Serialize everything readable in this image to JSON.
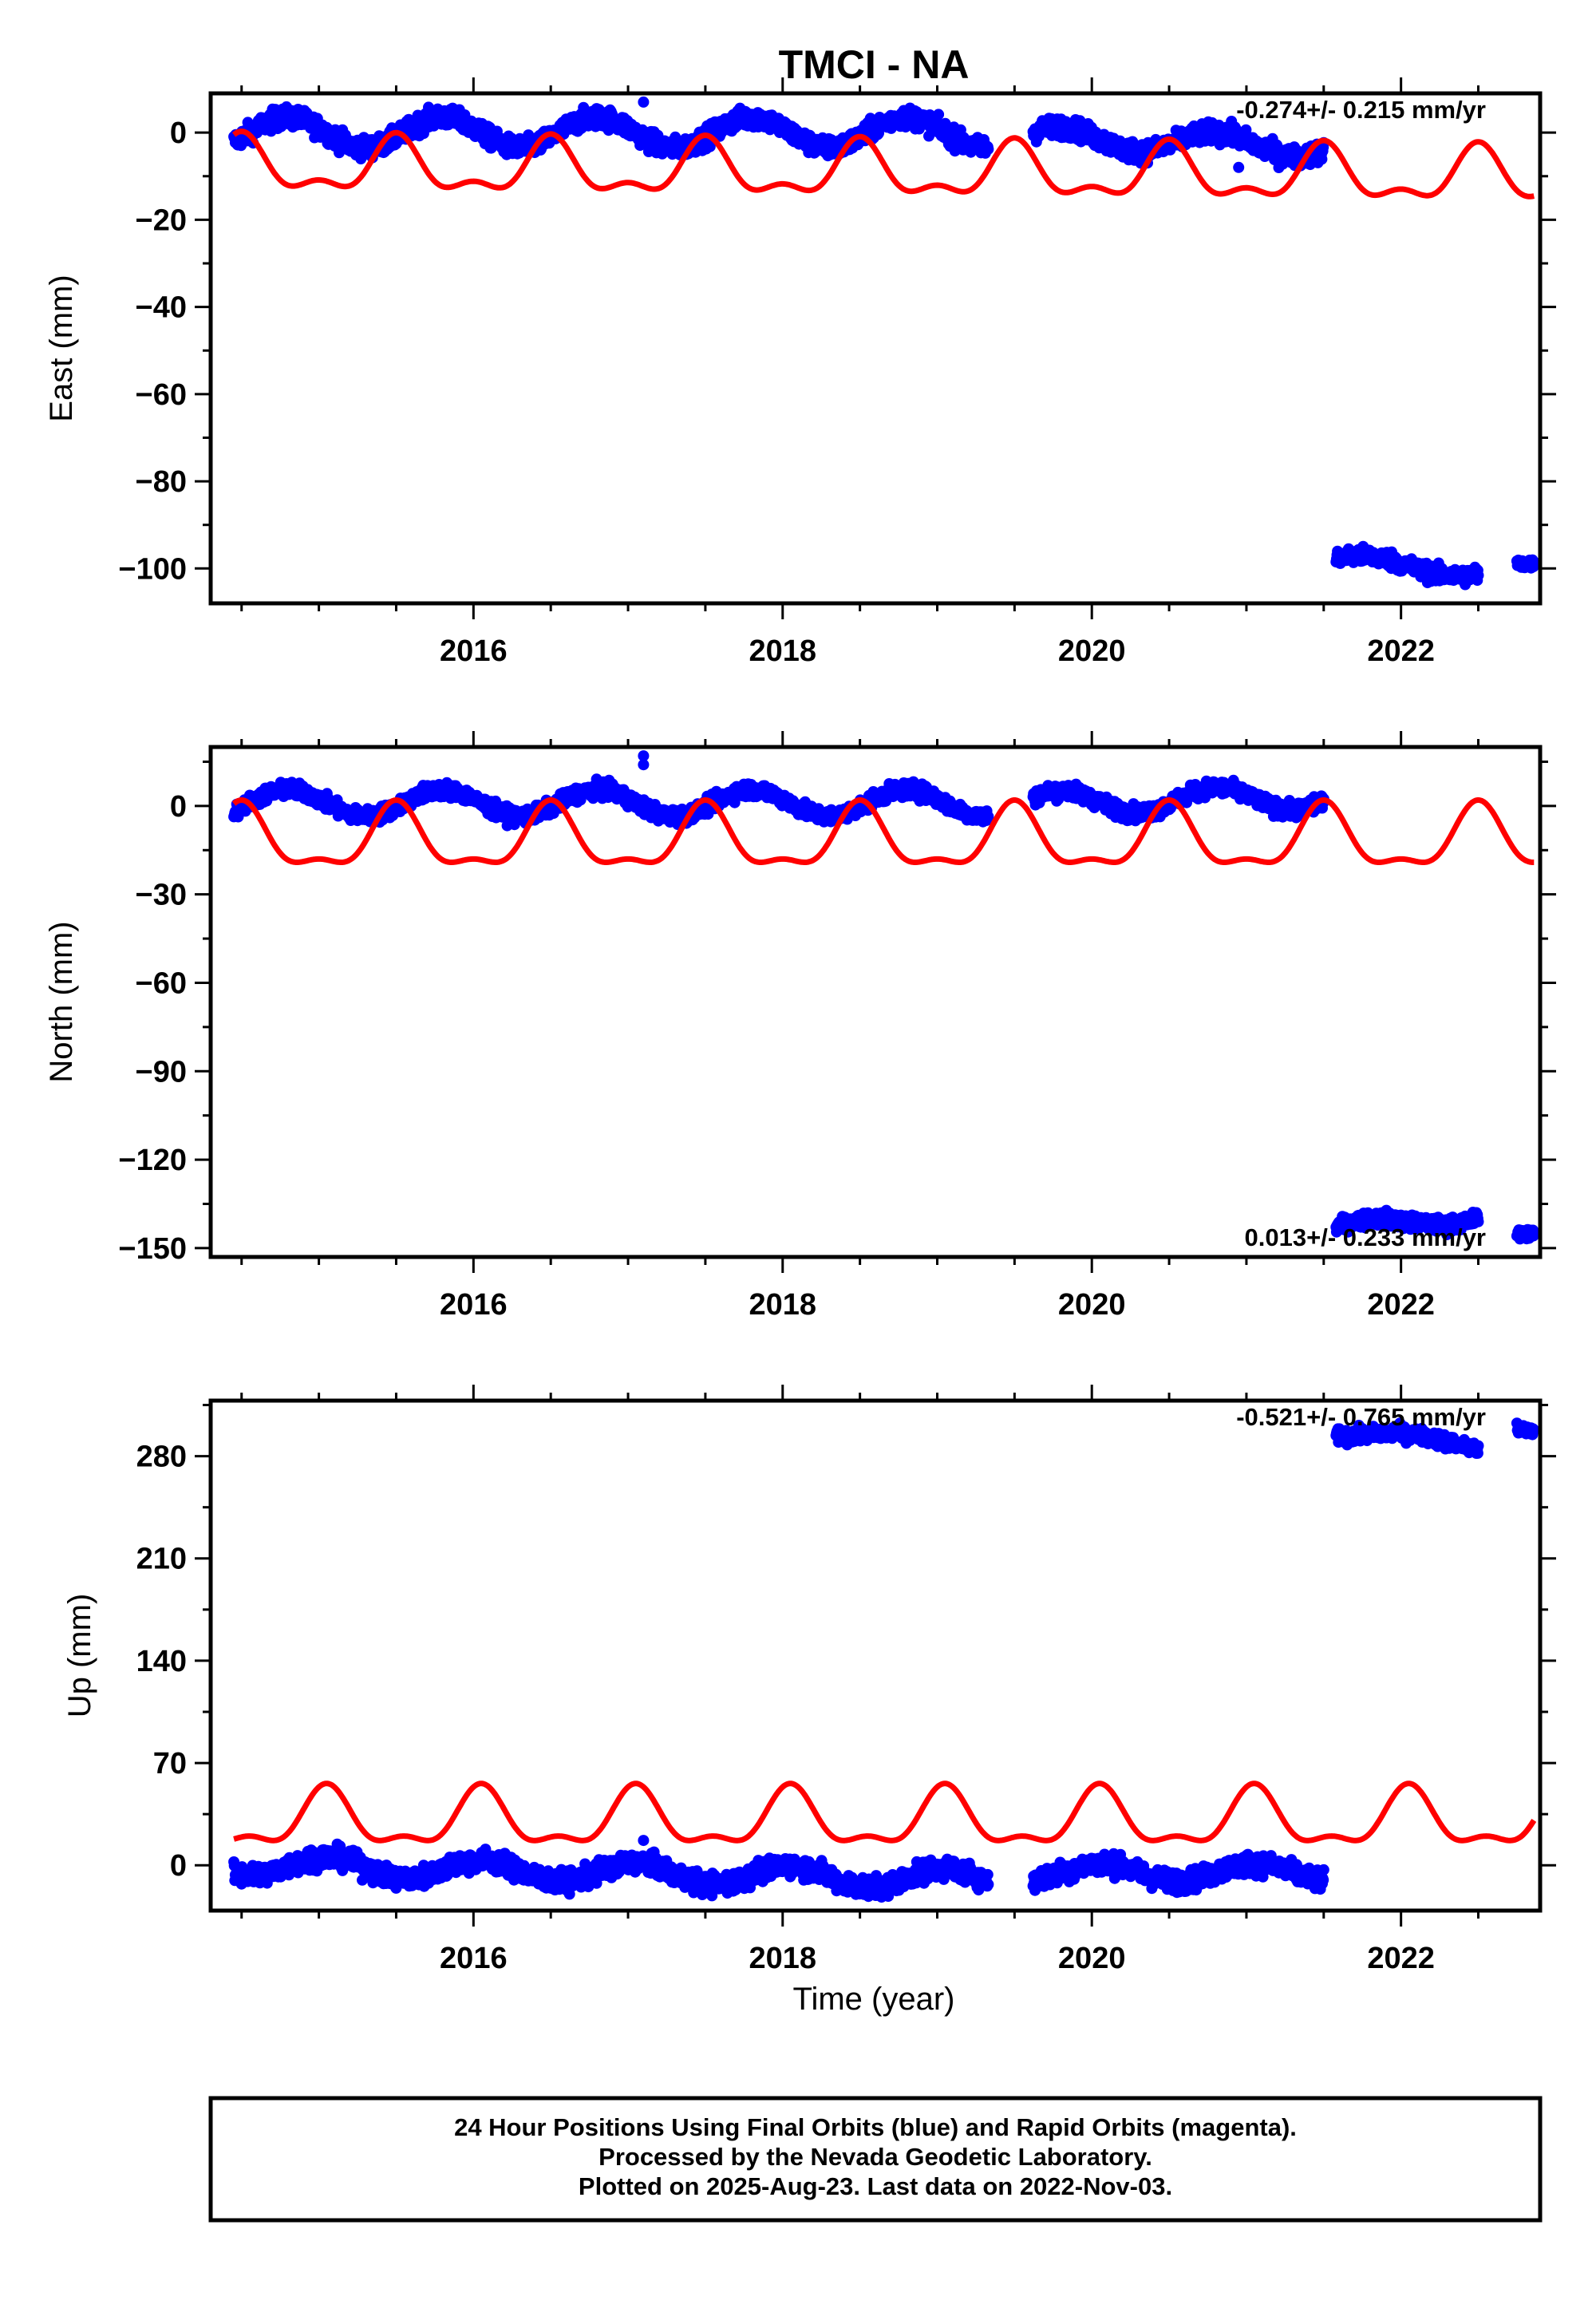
{
  "title": "TMCI - NA",
  "colors": {
    "data": "#0000ff",
    "model": "#ff0000",
    "frame": "#000000"
  },
  "chart_data": [
    {
      "type": "scatter",
      "ylabel": "East (mm)",
      "xlim": [
        2014.3,
        2022.9
      ],
      "ylim": [
        -108,
        9
      ],
      "xticks": [
        2016,
        2018,
        2020,
        2022
      ],
      "yticks": [
        0,
        -20,
        -40,
        -60,
        -80,
        -100
      ],
      "rate_label": "-0.274+/- 0.215 mm/yr",
      "rate_position": "top-right",
      "data_segments": [
        {
          "x0": 2014.45,
          "x1": 2019.33,
          "base": 0,
          "trend": 0,
          "amp": 3.5,
          "phase": 0.55,
          "noise": 1.6
        },
        {
          "x0": 2019.62,
          "x1": 2021.5,
          "base": -1,
          "trend": -1.2,
          "amp": 2.5,
          "phase": 0.55,
          "noise": 1.6
        },
        {
          "x0": 2021.58,
          "x1": 2022.5,
          "base": -98,
          "trend": -3,
          "amp": 1.5,
          "phase": 0.55,
          "noise": 1.4
        },
        {
          "x0": 2022.75,
          "x1": 2022.86,
          "base": -99,
          "trend": 0,
          "amp": 0,
          "phase": 0,
          "noise": 0.8
        }
      ],
      "outliers": [
        [
          2017.1,
          7
        ],
        [
          2020.95,
          -8
        ]
      ],
      "model": {
        "x0": 2014.45,
        "x1": 2022.86,
        "offset": -8,
        "trend": -0.3,
        "a1": 5.5,
        "ph1": 0.5,
        "a2": 2.8,
        "ph2": 0.5
      }
    },
    {
      "type": "scatter",
      "ylabel": "North (mm)",
      "xlim": [
        2014.3,
        2022.9
      ],
      "ylim": [
        -153,
        20
      ],
      "xticks": [
        2016,
        2018,
        2020,
        2022
      ],
      "yticks": [
        0,
        -30,
        -60,
        -90,
        -120,
        -150
      ],
      "rate_label": "0.013+/- 0.233 mm/yr",
      "rate_position": "bottom-right",
      "data_segments": [
        {
          "x0": 2014.45,
          "x1": 2019.33,
          "base": 1,
          "trend": 0,
          "amp": 4.5,
          "phase": 0.55,
          "noise": 1.8
        },
        {
          "x0": 2019.62,
          "x1": 2021.5,
          "base": 1,
          "trend": 1,
          "amp": 4,
          "phase": 0.55,
          "noise": 1.8
        },
        {
          "x0": 2021.58,
          "x1": 2022.5,
          "base": -143,
          "trend": 4,
          "amp": 2,
          "phase": 0.55,
          "noise": 1.8
        },
        {
          "x0": 2022.75,
          "x1": 2022.86,
          "base": -145,
          "trend": 0,
          "amp": 0,
          "phase": 0,
          "noise": 1.2
        }
      ],
      "outliers": [
        [
          2017.1,
          17
        ],
        [
          2017.1,
          14
        ]
      ],
      "model": {
        "x0": 2014.45,
        "x1": 2022.86,
        "offset": -12,
        "trend": 0,
        "a1": 10,
        "ph1": 0.5,
        "a2": 4,
        "ph2": 0.5
      }
    },
    {
      "type": "scatter",
      "ylabel": "Up (mm)",
      "xlim": [
        2014.3,
        2022.9
      ],
      "ylim": [
        -31,
        318
      ],
      "xticks": [
        2016,
        2018,
        2020,
        2022
      ],
      "yticks": [
        0,
        70,
        140,
        210,
        280
      ],
      "rate_label": "-0.521+/- 0.765 mm/yr",
      "rate_position": "top-right",
      "data_segments": [
        {
          "x0": 2014.45,
          "x1": 2019.33,
          "base": 0,
          "trend": -2,
          "amp": 7,
          "phase": 0.8,
          "noise": 5
        },
        {
          "x0": 2019.62,
          "x1": 2021.5,
          "base": -5,
          "trend": 0,
          "amp": 6,
          "phase": 0.8,
          "noise": 5
        },
        {
          "x0": 2021.58,
          "x1": 2022.5,
          "base": 297,
          "trend": -10,
          "amp": 3,
          "phase": 0.8,
          "noise": 3.5
        },
        {
          "x0": 2022.75,
          "x1": 2022.86,
          "base": 298,
          "trend": 0,
          "amp": 0,
          "phase": 0,
          "noise": 3
        }
      ],
      "outliers": [
        [
          2017.1,
          17
        ]
      ],
      "model": {
        "x0": 2014.45,
        "x1": 2022.86,
        "offset": 30,
        "trend": 0,
        "a1": 18,
        "ph1": 0.05,
        "a2": 8,
        "ph2": 0.05
      }
    }
  ],
  "xlabel": "Time (year)",
  "footer": [
    "24 Hour Positions Using Final Orbits (blue) and Rapid Orbits (magenta).",
    "Processed by the Nevada Geodetic Laboratory.",
    "Plotted on 2025-Aug-23. Last data on 2022-Nov-03."
  ]
}
